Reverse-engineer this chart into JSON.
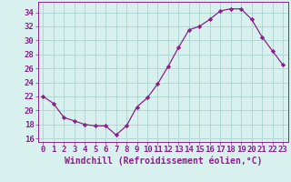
{
  "x": [
    0,
    1,
    2,
    3,
    4,
    5,
    6,
    7,
    8,
    9,
    10,
    11,
    12,
    13,
    14,
    15,
    16,
    17,
    18,
    19,
    20,
    21,
    22,
    23
  ],
  "y": [
    22,
    21,
    19,
    18.5,
    18,
    17.8,
    17.8,
    16.5,
    17.8,
    20.5,
    21.8,
    23.8,
    26.3,
    29,
    31.5,
    32,
    33,
    34.2,
    34.5,
    34.5,
    33,
    30.5,
    28.5,
    26.5
  ],
  "line_color": "#882288",
  "marker": "D",
  "marker_size": 2.2,
  "bg_color": "#d8f0ee",
  "grid_color": "#b0d8d4",
  "xlabel": "Windchill (Refroidissement éolien,°C)",
  "xlabel_fontsize": 7,
  "tick_fontsize": 6.5,
  "ylim": [
    15.5,
    35.5
  ],
  "yticks": [
    16,
    18,
    20,
    22,
    24,
    26,
    28,
    30,
    32,
    34
  ],
  "xlim": [
    -0.5,
    23.5
  ],
  "text_color": "#882288",
  "spine_color": "#882288"
}
